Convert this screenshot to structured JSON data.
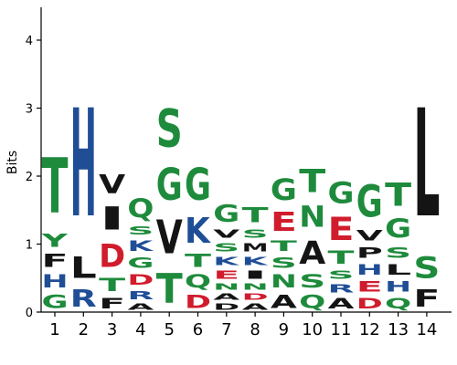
{
  "colors": {
    "green": "#1e8b3c",
    "blue": "#1f4e96",
    "red": "#d01c2d",
    "black": "#141414"
  },
  "chart_data": {
    "type": "sequence-logo",
    "title": "",
    "xlabel": "",
    "ylabel": "Bits",
    "ylim": [
      0,
      4.5
    ],
    "yticks": [
      0,
      1,
      2,
      3,
      4
    ],
    "positions": [
      {
        "label": "1",
        "stack": [
          {
            "l": "G",
            "h": 0.3,
            "c": "green"
          },
          {
            "l": "H",
            "h": 0.3,
            "c": "blue"
          },
          {
            "l": "F",
            "h": 0.3,
            "c": "black"
          },
          {
            "l": "Y",
            "h": 0.3,
            "c": "green"
          },
          {
            "l": "T",
            "h": 1.3,
            "c": "green"
          }
        ]
      },
      {
        "label": "2",
        "stack": [
          {
            "l": "R",
            "h": 0.4,
            "c": "blue"
          },
          {
            "l": "L",
            "h": 0.5,
            "c": "black"
          },
          {
            "l": "H",
            "h": 2.55,
            "c": "blue"
          }
        ]
      },
      {
        "label": "3",
        "stack": [
          {
            "l": "F",
            "h": 0.25,
            "c": "black"
          },
          {
            "l": "T",
            "h": 0.3,
            "c": "green"
          },
          {
            "l": "D",
            "h": 0.55,
            "c": "red"
          },
          {
            "l": "I",
            "h": 0.55,
            "c": "black"
          },
          {
            "l": "V",
            "h": 0.45,
            "c": "black"
          }
        ]
      },
      {
        "label": "4",
        "stack": [
          {
            "l": "A",
            "h": 0.15,
            "c": "black"
          },
          {
            "l": "R",
            "h": 0.2,
            "c": "blue"
          },
          {
            "l": "D",
            "h": 0.25,
            "c": "red"
          },
          {
            "l": "G",
            "h": 0.25,
            "c": "green"
          },
          {
            "l": "K",
            "h": 0.25,
            "c": "blue"
          },
          {
            "l": "S",
            "h": 0.2,
            "c": "green"
          },
          {
            "l": "Q",
            "h": 0.45,
            "c": "green"
          }
        ]
      },
      {
        "label": "5",
        "stack": [
          {
            "l": "T",
            "h": 0.7,
            "c": "green"
          },
          {
            "l": "V",
            "h": 0.8,
            "c": "black"
          },
          {
            "l": "G",
            "h": 0.75,
            "c": "green"
          },
          {
            "l": "S",
            "h": 0.9,
            "c": "green"
          }
        ]
      },
      {
        "label": "6",
        "stack": [
          {
            "l": "D",
            "h": 0.3,
            "c": "red"
          },
          {
            "l": "Q",
            "h": 0.3,
            "c": "green"
          },
          {
            "l": "T",
            "h": 0.3,
            "c": "green"
          },
          {
            "l": "K",
            "h": 0.6,
            "c": "blue"
          },
          {
            "l": "G",
            "h": 0.75,
            "c": "green"
          }
        ]
      },
      {
        "label": "7",
        "stack": [
          {
            "l": "D",
            "h": 0.15,
            "c": "black"
          },
          {
            "l": "A",
            "h": 0.15,
            "c": "black"
          },
          {
            "l": "N",
            "h": 0.15,
            "c": "green"
          },
          {
            "l": "E",
            "h": 0.2,
            "c": "red"
          },
          {
            "l": "K",
            "h": 0.2,
            "c": "blue"
          },
          {
            "l": "S",
            "h": 0.2,
            "c": "green"
          },
          {
            "l": "V",
            "h": 0.2,
            "c": "black"
          },
          {
            "l": "G",
            "h": 0.4,
            "c": "green"
          }
        ]
      },
      {
        "label": "8",
        "stack": [
          {
            "l": "A",
            "h": 0.15,
            "c": "black"
          },
          {
            "l": "D",
            "h": 0.15,
            "c": "red"
          },
          {
            "l": "N",
            "h": 0.15,
            "c": "green"
          },
          {
            "l": "I",
            "h": 0.2,
            "c": "black"
          },
          {
            "l": "K",
            "h": 0.2,
            "c": "blue"
          },
          {
            "l": "M",
            "h": 0.2,
            "c": "black"
          },
          {
            "l": "S",
            "h": 0.2,
            "c": "green"
          },
          {
            "l": "T",
            "h": 0.35,
            "c": "green"
          }
        ]
      },
      {
        "label": "9",
        "stack": [
          {
            "l": "A",
            "h": 0.3,
            "c": "black"
          },
          {
            "l": "N",
            "h": 0.3,
            "c": "green"
          },
          {
            "l": "S",
            "h": 0.25,
            "c": "green"
          },
          {
            "l": "T",
            "h": 0.25,
            "c": "green"
          },
          {
            "l": "E",
            "h": 0.45,
            "c": "red"
          },
          {
            "l": "G",
            "h": 0.5,
            "c": "green"
          }
        ]
      },
      {
        "label": "10",
        "stack": [
          {
            "l": "Q",
            "h": 0.3,
            "c": "green"
          },
          {
            "l": "S",
            "h": 0.3,
            "c": "green"
          },
          {
            "l": "A",
            "h": 0.55,
            "c": "black"
          },
          {
            "l": "N",
            "h": 0.5,
            "c": "green"
          },
          {
            "l": "T",
            "h": 0.55,
            "c": "green"
          }
        ]
      },
      {
        "label": "11",
        "stack": [
          {
            "l": "A",
            "h": 0.25,
            "c": "black"
          },
          {
            "l": "R",
            "h": 0.2,
            "c": "blue"
          },
          {
            "l": "S",
            "h": 0.2,
            "c": "green"
          },
          {
            "l": "T",
            "h": 0.3,
            "c": "green"
          },
          {
            "l": "E",
            "h": 0.55,
            "c": "red"
          },
          {
            "l": "G",
            "h": 0.5,
            "c": "green"
          }
        ]
      },
      {
        "label": "12",
        "stack": [
          {
            "l": "D",
            "h": 0.25,
            "c": "red"
          },
          {
            "l": "E",
            "h": 0.25,
            "c": "red"
          },
          {
            "l": "H",
            "h": 0.25,
            "c": "blue"
          },
          {
            "l": "P",
            "h": 0.25,
            "c": "black"
          },
          {
            "l": "V",
            "h": 0.25,
            "c": "black"
          },
          {
            "l": "G",
            "h": 0.75,
            "c": "green"
          }
        ]
      },
      {
        "label": "13",
        "stack": [
          {
            "l": "Q",
            "h": 0.25,
            "c": "green"
          },
          {
            "l": "H",
            "h": 0.25,
            "c": "blue"
          },
          {
            "l": "L",
            "h": 0.25,
            "c": "black"
          },
          {
            "l": "S",
            "h": 0.25,
            "c": "green"
          },
          {
            "l": "G",
            "h": 0.45,
            "c": "green"
          },
          {
            "l": "T",
            "h": 0.55,
            "c": "green"
          }
        ]
      },
      {
        "label": "14",
        "stack": [
          {
            "l": "F",
            "h": 0.4,
            "c": "black"
          },
          {
            "l": "S",
            "h": 0.5,
            "c": "green"
          },
          {
            "l": "L",
            "h": 2.55,
            "c": "black"
          }
        ]
      }
    ]
  }
}
